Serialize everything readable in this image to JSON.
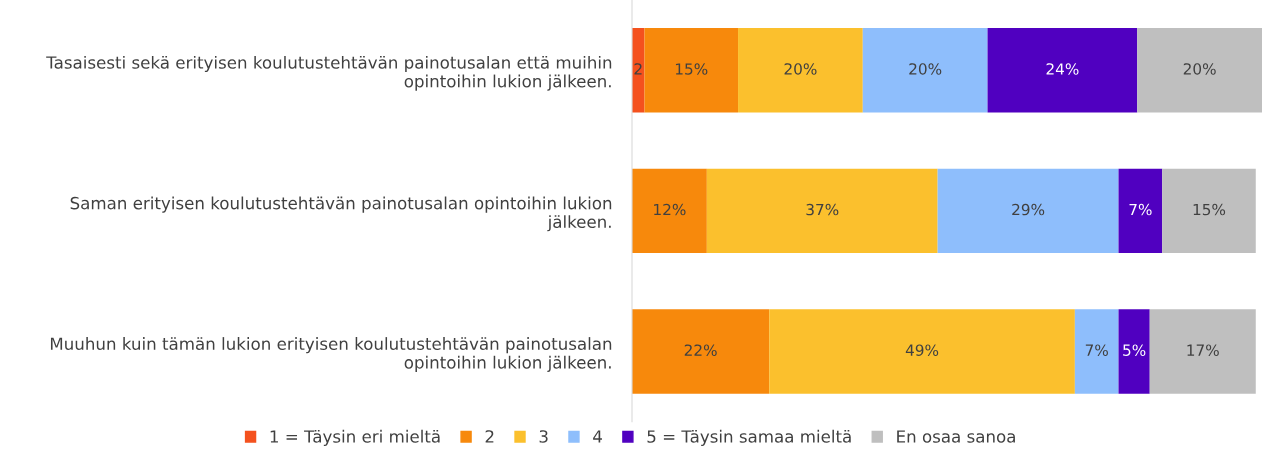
{
  "chart_data": {
    "type": "bar",
    "orientation": "horizontal",
    "stacked": true,
    "categories": [
      "Tasaisesti sekä erityisen koulutustehtävän painotusalan että muihin\nopintoihin lukion jälkeen.",
      "Saman erityisen koulutustehtävän painotusalan opintoihin lukion\njälkeen.",
      "Muuhun kuin tämän lukion erityisen koulutustehtävän painotusalan\nopintoihin lukion jälkeen."
    ],
    "series": [
      {
        "name": "1 = Täysin eri mieltä",
        "color": "#f4511e",
        "values": [
          2,
          null,
          null
        ],
        "value_labels": [
          "2",
          null,
          null
        ]
      },
      {
        "name": "2",
        "color": "#f7890c",
        "values": [
          15,
          12,
          22
        ],
        "value_labels": [
          "15%",
          "12%",
          "22%"
        ]
      },
      {
        "name": "3",
        "color": "#fbc02d",
        "values": [
          20,
          37,
          49
        ],
        "value_labels": [
          "20%",
          "37%",
          "49%"
        ]
      },
      {
        "name": "4",
        "color": "#8ebefc",
        "values": [
          20,
          29,
          7
        ],
        "value_labels": [
          "20%",
          "29%",
          "7%"
        ]
      },
      {
        "name": "5 = Täysin samaa mieltä",
        "color": "#5000c0",
        "values": [
          24,
          7,
          5
        ],
        "value_labels": [
          "24%",
          "7%",
          "5%"
        ]
      },
      {
        "name": "En osaa sanoa",
        "color": "#bfbfbf",
        "values": [
          20,
          15,
          17
        ],
        "value_labels": [
          "20%",
          "15%",
          "17%"
        ]
      }
    ],
    "legend": "bottom"
  }
}
